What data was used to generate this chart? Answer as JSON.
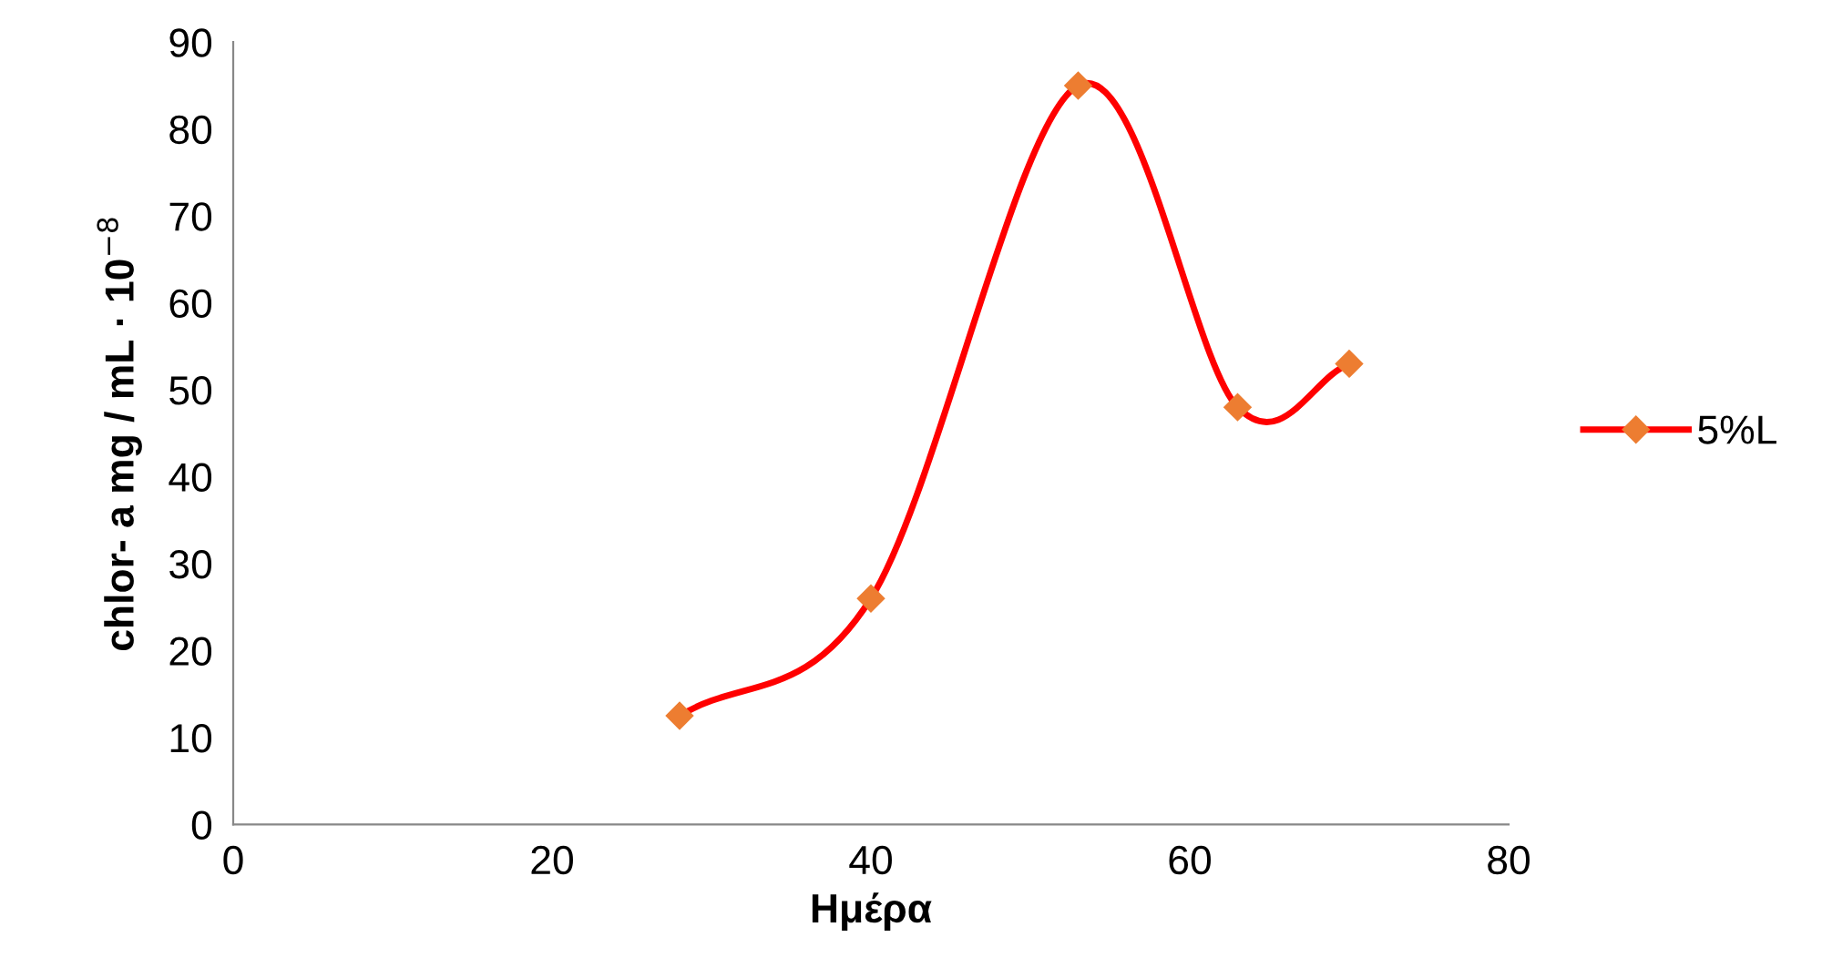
{
  "chart_data": {
    "type": "line",
    "xlabel": "Ημέρα",
    "ylabel": "chlor- a mg / mL · 10$^{−8}$",
    "x": [
      28,
      40,
      53,
      63,
      70
    ],
    "series": [
      {
        "name": "5%L",
        "color": "#ff0000",
        "colors": [
          "#ed7d31",
          "#ed7d31",
          "#ed7d31",
          "#ed7d31",
          "#ed7d31"
        ],
        "values": [
          12.5,
          26,
          85,
          48,
          53
        ]
      }
    ],
    "xlim": [
      0,
      80
    ],
    "xticks": [
      0,
      20,
      40,
      60,
      80
    ],
    "ylim": [
      0,
      90
    ],
    "yticks": [
      0,
      10,
      20,
      30,
      40,
      50,
      60,
      70,
      80,
      90
    ],
    "grid": false,
    "legend": "right",
    "marker": "diamond",
    "line_style": "solid"
  }
}
